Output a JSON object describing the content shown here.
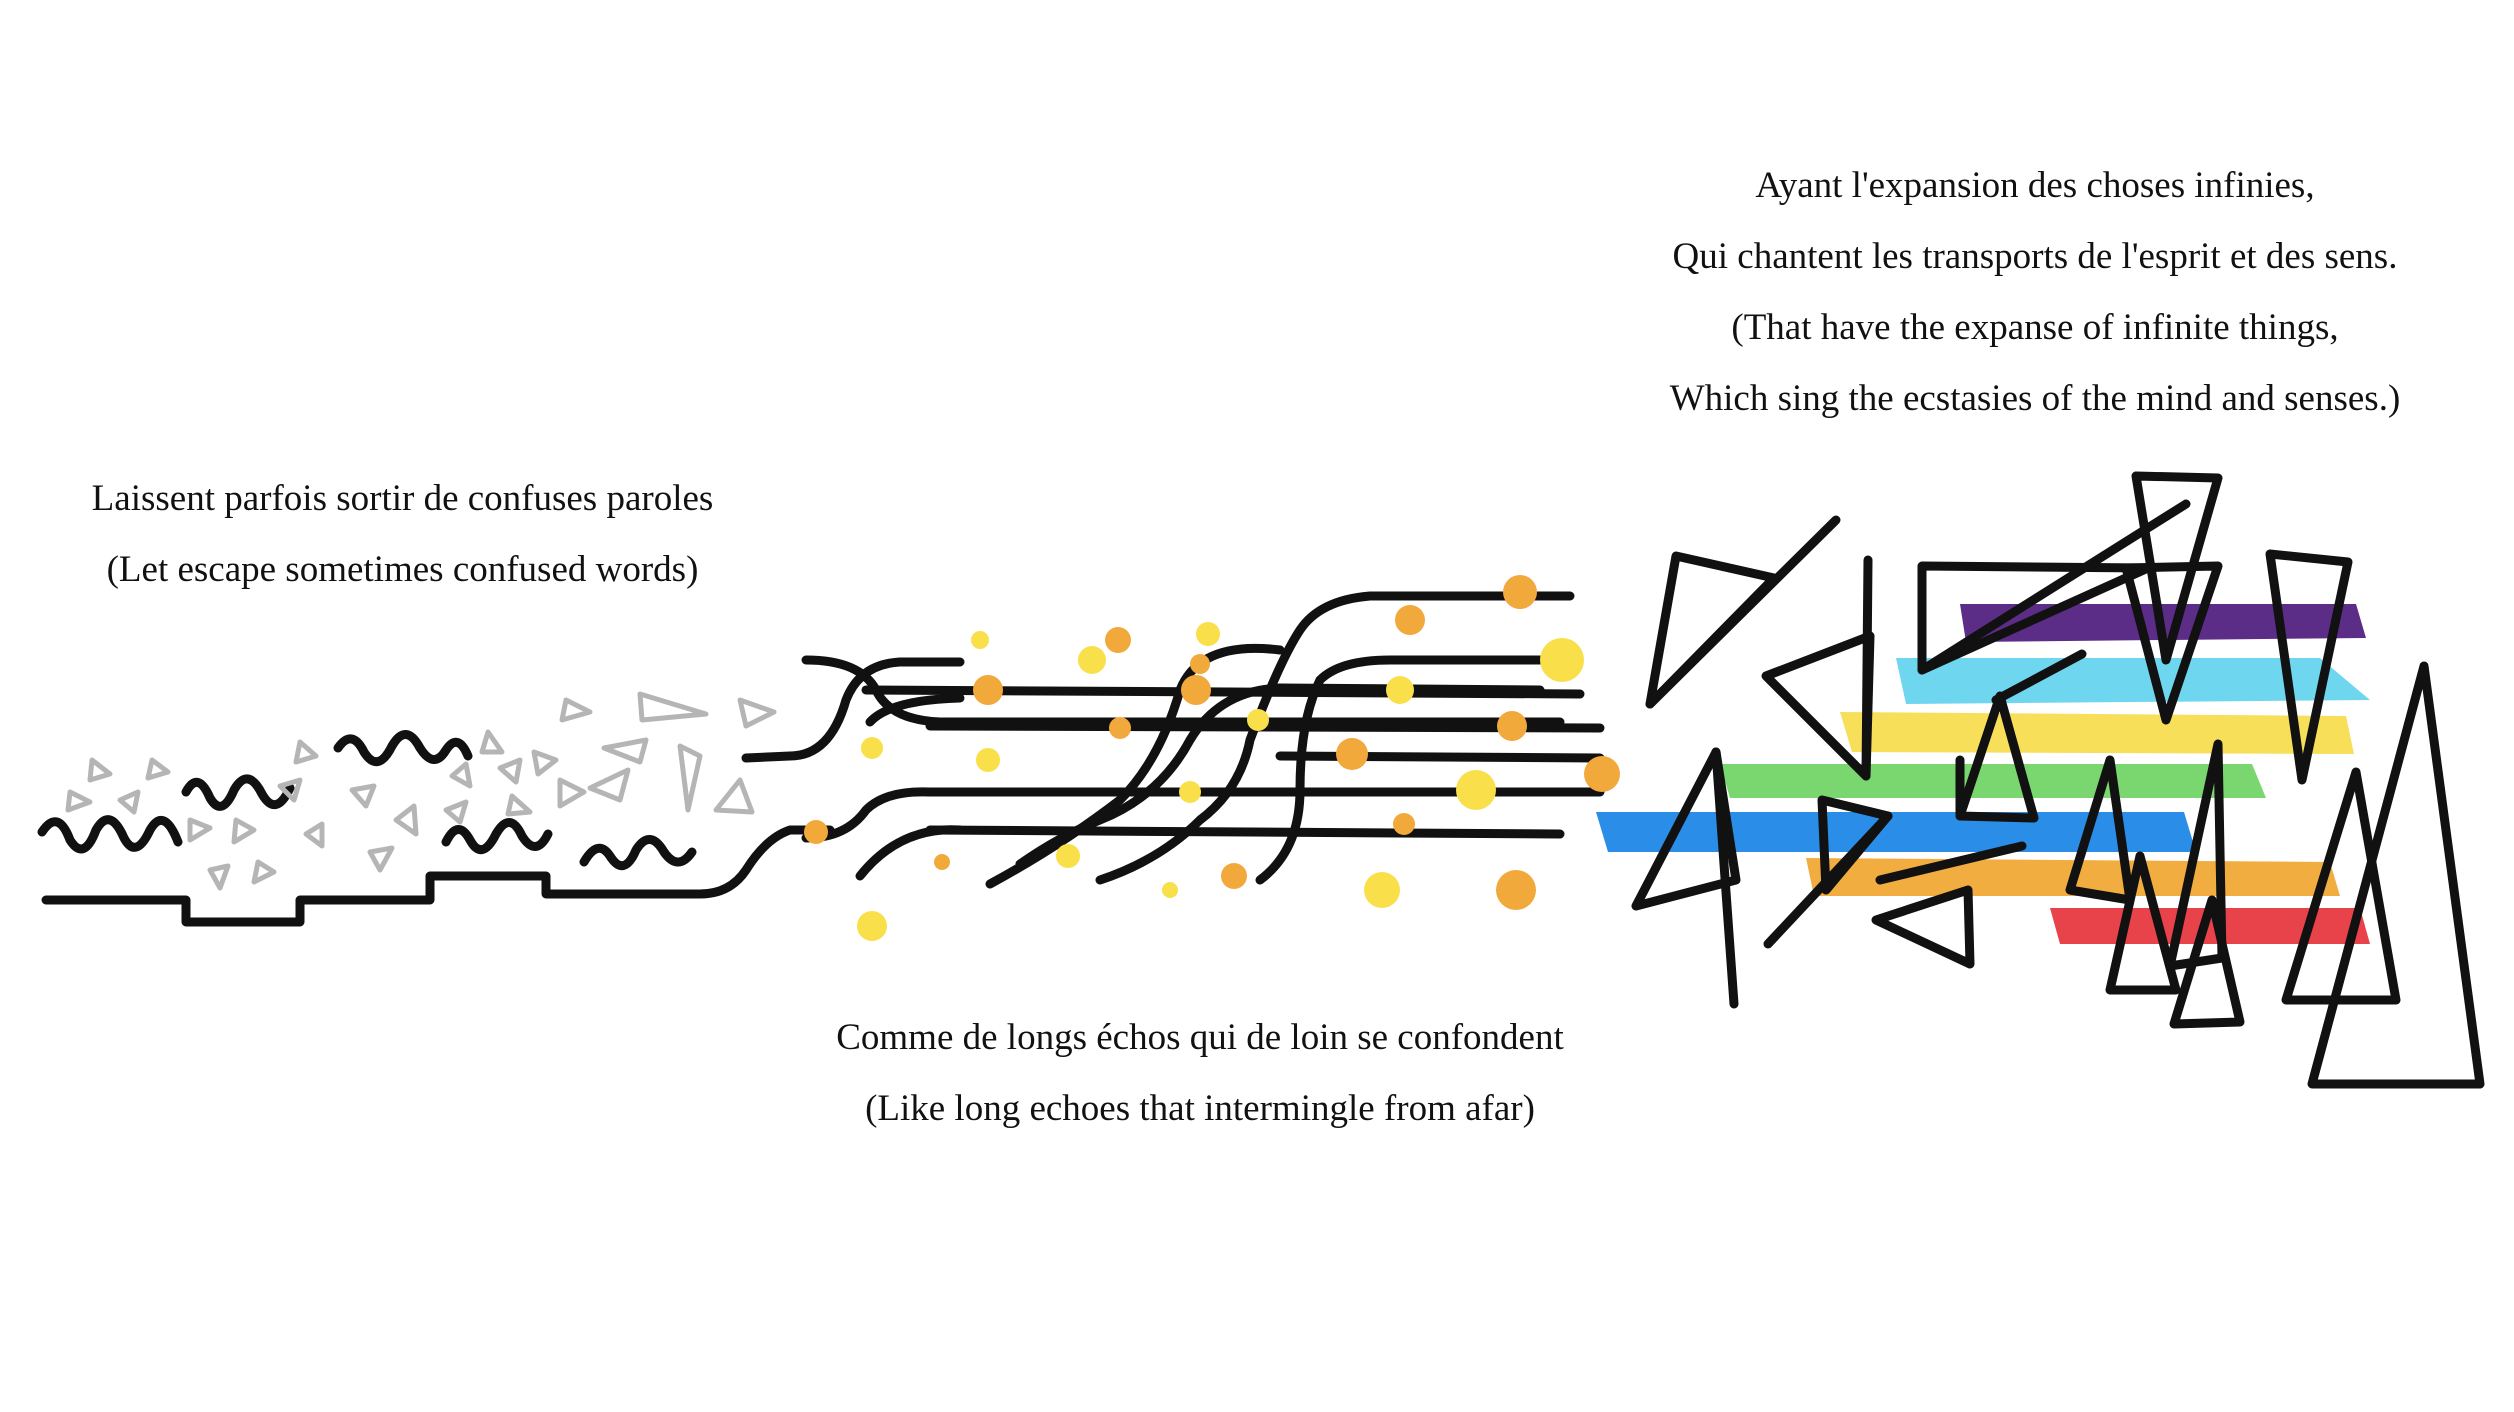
{
  "captions": {
    "left": {
      "line1": "Laissent parfois sortir de confuses paroles",
      "line2": "(Let escape sometimes confused words)"
    },
    "middle": {
      "line1": "Comme de longs échos qui de loin se confondent",
      "line2": "(Like long echoes that intermingle from afar)"
    },
    "right": {
      "line1": "Ayant l'expansion des choses infinies,",
      "line2": "Qui chantent les transports de l'esprit et des sens.",
      "line3": "(That have the expanse of infinite things,",
      "line4": "Which sing the ecstasies of the mind and senses.)"
    }
  },
  "colors": {
    "ink": "#111111",
    "triangle_grey": "#b5b5b5",
    "dot_yellow": "#f9e04b",
    "dot_orange": "#f2a93b",
    "band_purple": "#5b2d86",
    "band_cyan": "#6fd6f0",
    "band_yellow": "#f7df5a",
    "band_green": "#7ad66e",
    "band_blue": "#2a8ee8",
    "band_orange": "#f2ad40",
    "band_red": "#e8434a"
  }
}
